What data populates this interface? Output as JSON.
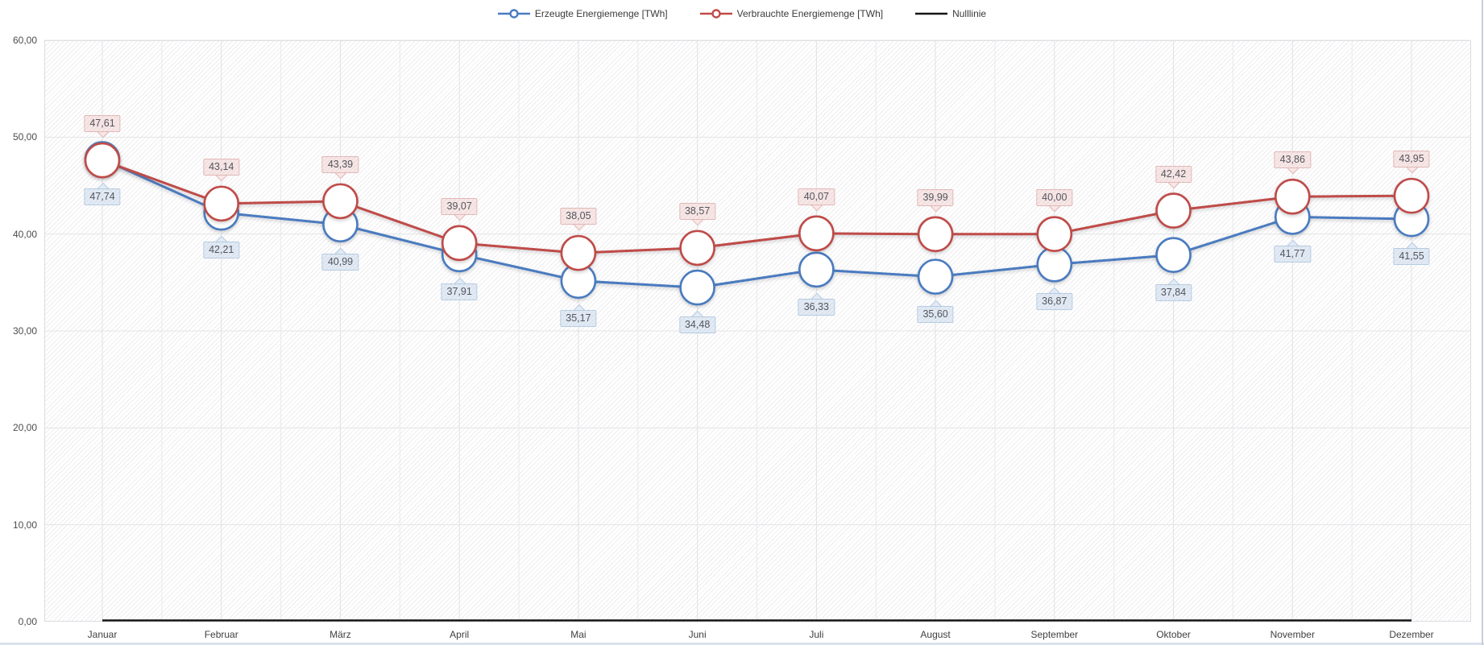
{
  "chart_data": {
    "type": "line",
    "title": "",
    "categories": [
      "Januar",
      "Februar",
      "März",
      "April",
      "Mai",
      "Juni",
      "Juli",
      "August",
      "September",
      "Oktober",
      "November",
      "Dezember"
    ],
    "series": [
      {
        "name": "Erzeugte Energiemenge [TWh]",
        "key": "erzeugte",
        "color": "#4a7bbf",
        "marker": "circle",
        "label_position": "below",
        "label_bg": "#e2ebf5",
        "label_border": "#b6cbe1",
        "values": [
          47.74,
          42.21,
          40.99,
          37.91,
          35.17,
          34.48,
          36.33,
          35.6,
          36.87,
          37.84,
          41.77,
          41.55
        ]
      },
      {
        "name": "Verbrauchte Energiemenge [TWh]",
        "key": "verbrauchte",
        "color": "#bf4b48",
        "marker": "circle",
        "label_position": "above",
        "label_bg": "#f8e7e6",
        "label_border": "#e1b8b6",
        "values": [
          47.61,
          43.14,
          43.39,
          39.07,
          38.05,
          38.57,
          40.07,
          39.99,
          40.0,
          42.42,
          43.86,
          43.95
        ]
      },
      {
        "name": "Nulllinie",
        "key": "nulllinie",
        "color": "#161616",
        "marker": "none",
        "label_position": "none",
        "values": [
          0,
          0,
          0,
          0,
          0,
          0,
          0,
          0,
          0,
          0,
          0,
          0
        ]
      }
    ],
    "ylim": [
      0,
      60
    ],
    "yticks": [
      0,
      10,
      20,
      30,
      40,
      50,
      60
    ],
    "decimal_separator": ",",
    "grid": true,
    "legend_position": "top",
    "xlabel": "",
    "ylabel": ""
  }
}
